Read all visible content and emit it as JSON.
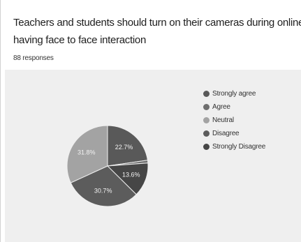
{
  "question": {
    "line1": "Teachers and students should turn on their cameras during online English literature classes fo",
    "line2": "having face to face interaction"
  },
  "responses_label": "88 responses",
  "chart_data": {
    "type": "pie",
    "title": "Teachers and students should turn on their cameras during online English literature classes for having face to face interaction",
    "slices": [
      {
        "name": "Strongly agree",
        "value": 22.7,
        "label": "22.7%",
        "color": "#595959"
      },
      {
        "name": "Agree",
        "value": 1.1,
        "label": "",
        "color": "#6e6e6e"
      },
      {
        "name": "Neutral",
        "value": 31.8,
        "label": "31.8%",
        "color": "#a3a3a3"
      },
      {
        "name": "Disagree",
        "value": 30.7,
        "label": "30.7%",
        "color": "#5c5c5c"
      },
      {
        "name": "Strongly Disagree",
        "value": 13.6,
        "label": "13.6%",
        "color": "#464646"
      }
    ],
    "draw_order": [
      "Strongly agree",
      "Agree",
      "Strongly Disagree",
      "Disagree",
      "Neutral"
    ],
    "legend_position": "right"
  }
}
